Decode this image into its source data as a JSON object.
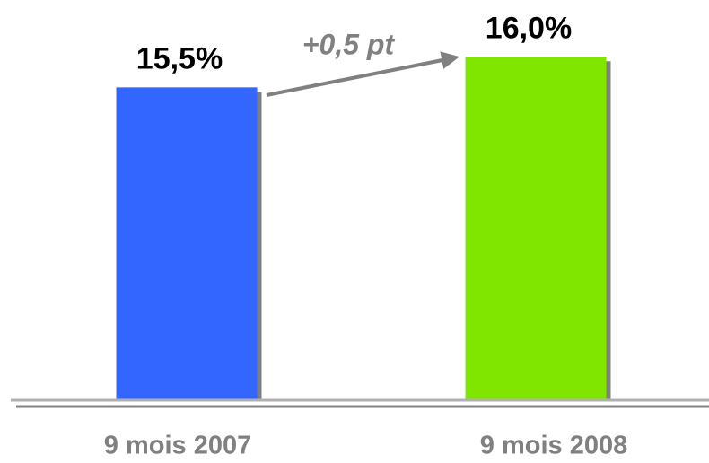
{
  "chart_data": {
    "type": "bar",
    "categories": [
      "9 mois 2007",
      "9 mois 2008"
    ],
    "values": [
      15.5,
      16.0
    ],
    "value_labels": [
      "15,5%",
      "16,0%"
    ],
    "colors": [
      "#3366ff",
      "#80e600"
    ],
    "annotation": "+0,5 pt",
    "ylim": [
      10.4,
      16.4
    ]
  }
}
